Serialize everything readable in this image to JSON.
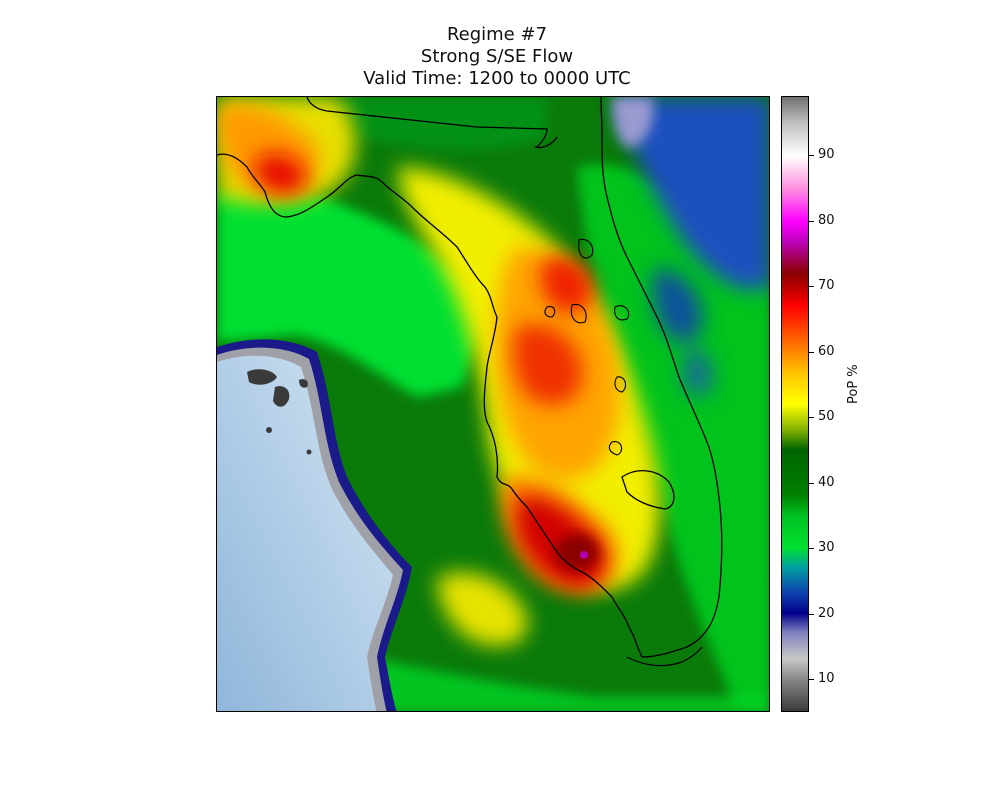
{
  "title": {
    "line1": "Regime #7",
    "line2": "Strong S/SE Flow",
    "line3": "Valid Time: 1200 to 0000 UTC"
  },
  "colorbar": {
    "label": "PoP %",
    "min": 5,
    "max": 99,
    "ticks": [
      "10",
      "20",
      "30",
      "40",
      "50",
      "60",
      "70",
      "80",
      "90"
    ],
    "stops": [
      {
        "v": 5,
        "c": "#3a3a3a"
      },
      {
        "v": 10,
        "c": "#8a8a8a"
      },
      {
        "v": 13,
        "c": "#c8c8c8"
      },
      {
        "v": 17,
        "c": "#8080c0"
      },
      {
        "v": 20,
        "c": "#00008a"
      },
      {
        "v": 23,
        "c": "#1040b0"
      },
      {
        "v": 27,
        "c": "#00a0a0"
      },
      {
        "v": 30,
        "c": "#00e030"
      },
      {
        "v": 35,
        "c": "#00c020"
      },
      {
        "v": 38,
        "c": "#008000"
      },
      {
        "v": 45,
        "c": "#006400"
      },
      {
        "v": 48,
        "c": "#80b000"
      },
      {
        "v": 52,
        "c": "#ffff00"
      },
      {
        "v": 57,
        "c": "#ffc000"
      },
      {
        "v": 62,
        "c": "#ff6000"
      },
      {
        "v": 67,
        "c": "#ff0000"
      },
      {
        "v": 72,
        "c": "#8a0000"
      },
      {
        "v": 77,
        "c": "#c000c0"
      },
      {
        "v": 80,
        "c": "#ff00ff"
      },
      {
        "v": 85,
        "c": "#ff90e0"
      },
      {
        "v": 90,
        "c": "#ffffff"
      },
      {
        "v": 95,
        "c": "#c0c0c0"
      },
      {
        "v": 99,
        "c": "#707070"
      }
    ]
  },
  "colors": {
    "gulf_water": "#a9c8e4",
    "land_green": "#0a7a0a",
    "bright_green": "#00e030",
    "yellow": "#ffff00",
    "orange": "#ffa000",
    "red": "#e01010",
    "dark_red": "#a00000",
    "atlantic_blue": "#1a4fc0",
    "coastline": "#000000"
  }
}
